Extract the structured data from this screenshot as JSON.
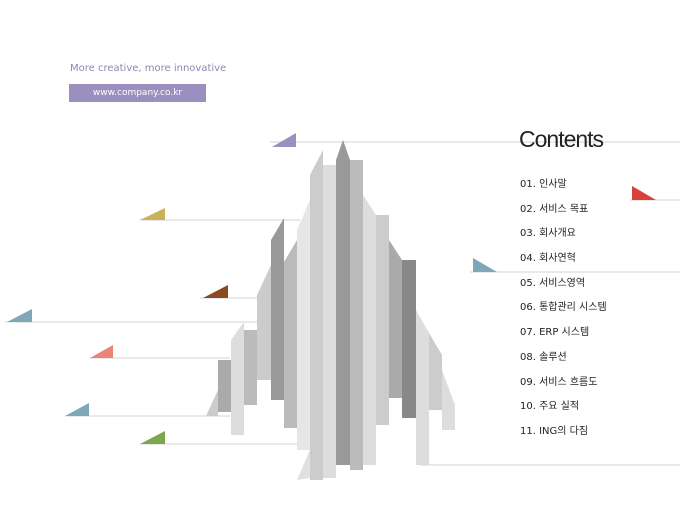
{
  "header": {
    "tagline": "More creative, more innovative",
    "url": "www.company.co.kr"
  },
  "contents": {
    "title": "Contents",
    "items": [
      "01. 인사말",
      "02. 서비스 목표",
      "03. 회사개요",
      "04. 회사연혁",
      "05. 서비스영역",
      "06. 통합관리 시스템",
      "07. ERP 시스템",
      "08. 솔루션",
      "09. 서비스 흐름도",
      "10. 주요 실적",
      "11. ING의 다짐"
    ]
  }
}
